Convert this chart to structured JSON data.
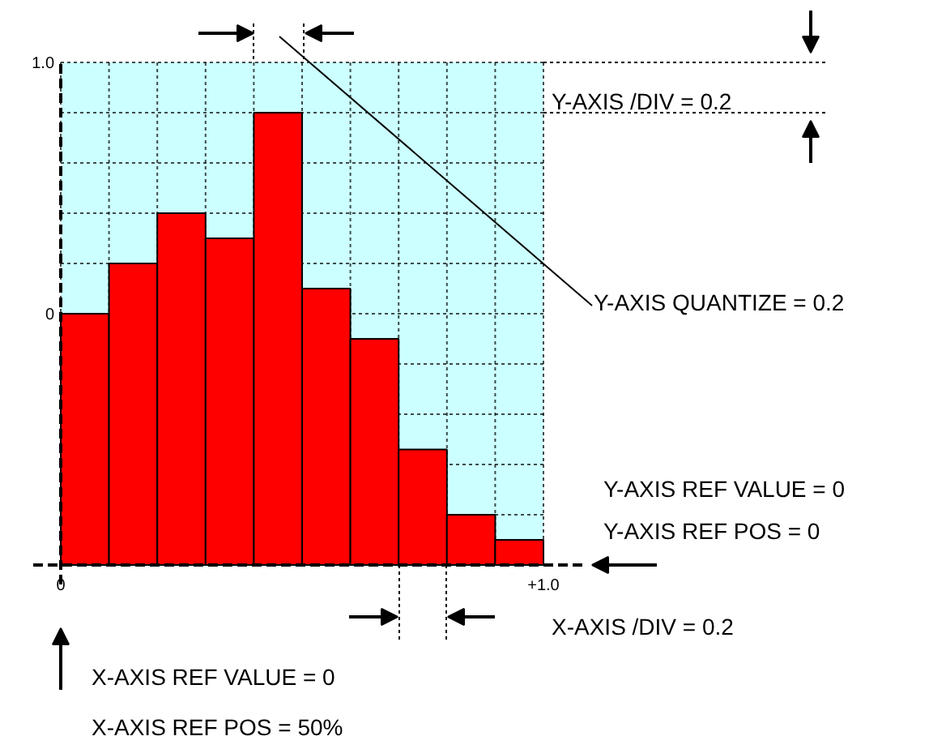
{
  "chart_data": {
    "type": "bar",
    "x": [
      0.05,
      0.15,
      0.25,
      0.35,
      0.45,
      0.55,
      0.65,
      0.75,
      0.85,
      0.95
    ],
    "values": [
      1.0,
      1.2,
      1.4,
      1.3,
      1.8,
      1.1,
      0.9,
      0.46,
      0.2,
      0.1
    ],
    "base": [
      -1,
      -1,
      -1,
      -1,
      -1,
      -1,
      -1,
      -1,
      -1,
      -1
    ],
    "color": "#ff0000",
    "xlim": [
      0,
      1
    ],
    "xticks": [
      {
        "value": 0,
        "label": "0"
      },
      {
        "value": 0.1,
        "label": null
      },
      {
        "value": 0.2,
        "label": null
      },
      {
        "value": 0.3,
        "label": null
      },
      {
        "value": 0.4,
        "label": null
      },
      {
        "value": 0.5,
        "label": null
      },
      {
        "value": 0.6,
        "label": null
      },
      {
        "value": 0.7,
        "label": null
      },
      {
        "value": 0.8,
        "label": null
      },
      {
        "value": 0.9,
        "label": null
      },
      {
        "value": 1,
        "label": "+1.0"
      }
    ],
    "ylim": [
      -1,
      1
    ],
    "yticks": [
      {
        "value": -1,
        "label": null
      },
      {
        "value": -0.8,
        "label": null
      },
      {
        "value": -0.6,
        "label": null
      },
      {
        "value": -0.4,
        "label": null
      },
      {
        "value": -0.2,
        "label": null
      },
      {
        "value": 0,
        "label": "0"
      },
      {
        "value": 0.2,
        "label": null
      },
      {
        "value": 0.4,
        "label": null
      },
      {
        "value": 0.6,
        "label": null
      },
      {
        "value": 0.8,
        "label": null
      },
      {
        "value": 1,
        "label": "1.0"
      }
    ],
    "grid": true,
    "annotations": [
      "Y-AXIS /DIV = 0.2",
      "Y-AXIS QUANTIZE = 0.2",
      "Y-AXIS REF VALUE = 0",
      "Y-AXIS REF POS = 0",
      "X-AXIS /DIV = 0.2",
      "X-AXIS REF VALUE = 0",
      "X-AXIS REF POS = 50%"
    ]
  }
}
